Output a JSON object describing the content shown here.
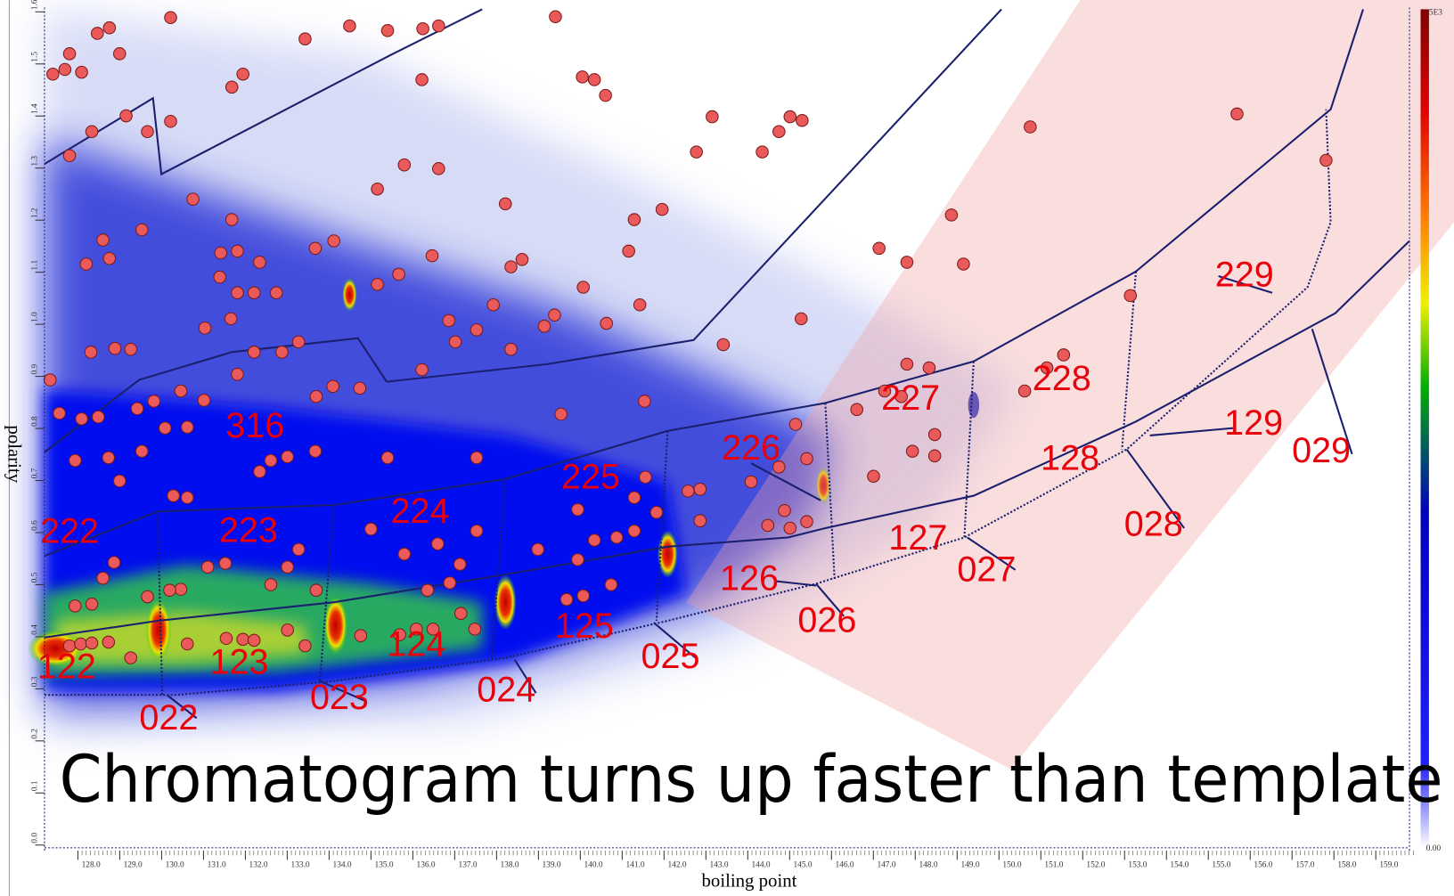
{
  "annotation": "Chromatogram turns up faster than template",
  "x_axis": {
    "label": "boiling point",
    "ticks": [
      "128.0",
      "129.0",
      "130.0",
      "131.0",
      "132.0",
      "133.0",
      "134.0",
      "135.0",
      "136.0",
      "137.0",
      "138.0",
      "139.0",
      "140.0",
      "141.0",
      "142.0",
      "143.0",
      "144.0",
      "145.0",
      "146.0",
      "147.0",
      "148.0",
      "149.0",
      "150.0",
      "151.0",
      "152.0",
      "153.0",
      "154.0",
      "155.0",
      "156.0",
      "157.0",
      "158.0",
      "159.0"
    ]
  },
  "y_axis": {
    "label": "polarity",
    "ticks": [
      "0.0",
      "0.1",
      "0.2",
      "0.3",
      "0.4",
      "0.5",
      "0.6",
      "0.7",
      "0.8",
      "0.9",
      "1.0",
      "1.1",
      "1.2",
      "1.3",
      "1.4",
      "1.5",
      "1.6"
    ]
  },
  "colorbar": {
    "max": "5E3",
    "min": "0.00"
  },
  "regions": [
    "316",
    "222",
    "223",
    "224",
    "225",
    "226",
    "227",
    "228",
    "229",
    "122",
    "123",
    "124",
    "125",
    "126",
    "127",
    "128",
    "129",
    "022",
    "023",
    "024",
    "025",
    "026",
    "027",
    "028",
    "029"
  ]
}
